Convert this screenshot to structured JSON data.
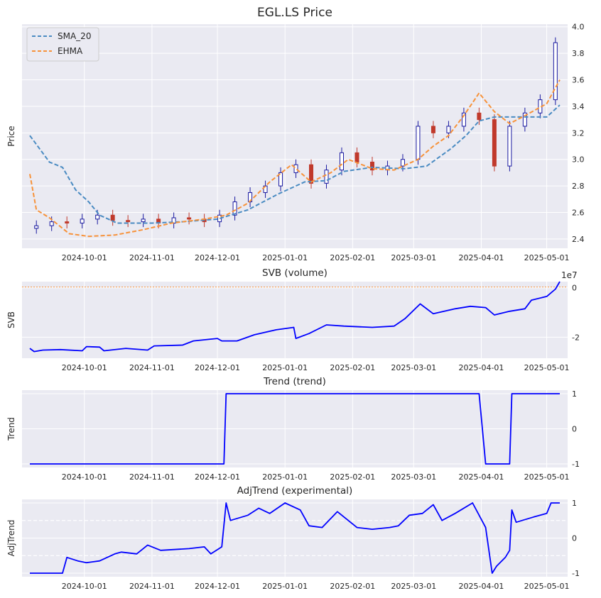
{
  "chart_data": [
    {
      "type": "candlestick",
      "title": "EGL.LS Price",
      "ylabel": "Price",
      "ylim": [
        2.33,
        4.02
      ],
      "yticks": [
        "2.4",
        "2.6",
        "2.8",
        "3.0",
        "3.2",
        "3.4",
        "3.6",
        "3.8",
        "4.0"
      ],
      "xticks": [
        "2024-10-01",
        "2024-11-01",
        "2024-12-01",
        "2025-01-01",
        "2025-02-01",
        "2025-03-01",
        "2025-04-01",
        "2025-05-01"
      ],
      "legend": {
        "position": "top-left",
        "entries": [
          "SMA_20",
          "EHMA"
        ]
      },
      "colors": {
        "up": "#1a1aa0",
        "down": "#c0392b",
        "sma": "#4a8bc2",
        "ehma": "#f7923a"
      },
      "x_range": [
        "2024-09-06",
        "2025-05-07"
      ],
      "close": [
        [
          "2024-09-09",
          2.5
        ],
        [
          "2024-09-16",
          2.53
        ],
        [
          "2024-09-23",
          2.52
        ],
        [
          "2024-09-30",
          2.55
        ],
        [
          "2024-10-07",
          2.58
        ],
        [
          "2024-10-14",
          2.54
        ],
        [
          "2024-10-21",
          2.53
        ],
        [
          "2024-10-28",
          2.55
        ],
        [
          "2024-11-04",
          2.52
        ],
        [
          "2024-11-11",
          2.56
        ],
        [
          "2024-11-18",
          2.55
        ],
        [
          "2024-11-25",
          2.53
        ],
        [
          "2024-12-02",
          2.58
        ],
        [
          "2024-12-09",
          2.68
        ],
        [
          "2024-12-16",
          2.75
        ],
        [
          "2024-12-23",
          2.8
        ],
        [
          "2024-12-30",
          2.9
        ],
        [
          "2025-01-06",
          2.96
        ],
        [
          "2025-01-13",
          2.82
        ],
        [
          "2025-01-20",
          2.92
        ],
        [
          "2025-01-27",
          3.05
        ],
        [
          "2025-02-03",
          2.98
        ],
        [
          "2025-02-10",
          2.92
        ],
        [
          "2025-02-17",
          2.95
        ],
        [
          "2025-02-24",
          3.0
        ],
        [
          "2025-03-03",
          3.25
        ],
        [
          "2025-03-10",
          3.2
        ],
        [
          "2025-03-17",
          3.25
        ],
        [
          "2025-03-24",
          3.35
        ],
        [
          "2025-03-31",
          3.3
        ],
        [
          "2025-04-07",
          2.95
        ],
        [
          "2025-04-14",
          3.25
        ],
        [
          "2025-04-21",
          3.35
        ],
        [
          "2025-04-28",
          3.45
        ],
        [
          "2025-05-05",
          3.88
        ]
      ],
      "sma_20": [
        [
          "2024-09-06",
          3.18
        ],
        [
          "2024-09-15",
          2.98
        ],
        [
          "2024-09-21",
          2.94
        ],
        [
          "2024-09-27",
          2.77
        ],
        [
          "2024-10-03",
          2.68
        ],
        [
          "2024-10-08",
          2.58
        ],
        [
          "2024-10-16",
          2.52
        ],
        [
          "2024-11-01",
          2.52
        ],
        [
          "2024-11-15",
          2.53
        ],
        [
          "2024-12-01",
          2.55
        ],
        [
          "2024-12-15",
          2.62
        ],
        [
          "2024-12-29",
          2.74
        ],
        [
          "2025-01-10",
          2.83
        ],
        [
          "2025-01-20",
          2.84
        ],
        [
          "2025-01-28",
          2.91
        ],
        [
          "2025-02-10",
          2.94
        ],
        [
          "2025-02-25",
          2.93
        ],
        [
          "2025-03-07",
          2.95
        ],
        [
          "2025-03-18",
          3.08
        ],
        [
          "2025-03-25",
          3.18
        ],
        [
          "2025-03-31",
          3.29
        ],
        [
          "2025-04-07",
          3.32
        ],
        [
          "2025-04-21",
          3.32
        ],
        [
          "2025-05-01",
          3.32
        ],
        [
          "2025-05-07",
          3.41
        ]
      ],
      "ehma": [
        [
          "2024-09-06",
          2.89
        ],
        [
          "2024-09-09",
          2.62
        ],
        [
          "2024-09-15",
          2.56
        ],
        [
          "2024-09-24",
          2.44
        ],
        [
          "2024-10-03",
          2.42
        ],
        [
          "2024-10-15",
          2.43
        ],
        [
          "2024-10-28",
          2.47
        ],
        [
          "2024-11-10",
          2.52
        ],
        [
          "2024-11-25",
          2.55
        ],
        [
          "2024-12-05",
          2.58
        ],
        [
          "2024-12-15",
          2.67
        ],
        [
          "2024-12-25",
          2.83
        ],
        [
          "2025-01-04",
          2.96
        ],
        [
          "2025-01-13",
          2.83
        ],
        [
          "2025-01-22",
          2.9
        ],
        [
          "2025-01-30",
          3.0
        ],
        [
          "2025-02-10",
          2.93
        ],
        [
          "2025-02-20",
          2.92
        ],
        [
          "2025-03-03",
          3.0
        ],
        [
          "2025-03-10",
          3.1
        ],
        [
          "2025-03-17",
          3.18
        ],
        [
          "2025-03-24",
          3.33
        ],
        [
          "2025-03-31",
          3.5
        ],
        [
          "2025-04-07",
          3.36
        ],
        [
          "2025-04-14",
          3.27
        ],
        [
          "2025-04-21",
          3.33
        ],
        [
          "2025-05-01",
          3.42
        ],
        [
          "2025-05-07",
          3.6
        ]
      ]
    },
    {
      "type": "line",
      "title": "SVB (volume)",
      "ylabel": "SVB",
      "offset_label": "1e7",
      "ylim": [
        -2.85,
        0.25
      ],
      "yticks": [
        "0",
        "-2"
      ],
      "xticks": [
        "2024-10-01",
        "2024-11-01",
        "2024-12-01",
        "2025-01-01",
        "2025-02-01",
        "2025-03-01",
        "2025-04-01",
        "2025-05-01"
      ],
      "series": [
        {
          "values": [
            [
              "2024-09-06",
              -2.45
            ],
            [
              "2024-09-08",
              -2.58
            ],
            [
              "2024-09-12",
              -2.52
            ],
            [
              "2024-09-20",
              -2.5
            ],
            [
              "2024-09-30",
              -2.55
            ],
            [
              "2024-10-02",
              -2.38
            ],
            [
              "2024-10-08",
              -2.4
            ],
            [
              "2024-10-10",
              -2.55
            ],
            [
              "2024-10-20",
              -2.45
            ],
            [
              "2024-10-30",
              -2.52
            ],
            [
              "2024-11-02",
              -2.35
            ],
            [
              "2024-11-15",
              -2.32
            ],
            [
              "2024-11-20",
              -2.15
            ],
            [
              "2024-12-01",
              -2.05
            ],
            [
              "2024-12-03",
              -2.15
            ],
            [
              "2024-12-10",
              -2.15
            ],
            [
              "2024-12-18",
              -1.9
            ],
            [
              "2024-12-28",
              -1.7
            ],
            [
              "2025-01-05",
              -1.6
            ],
            [
              "2025-01-06",
              -2.05
            ],
            [
              "2025-01-12",
              -1.85
            ],
            [
              "2025-01-20",
              -1.5
            ],
            [
              "2025-01-28",
              -1.55
            ],
            [
              "2025-02-10",
              -1.6
            ],
            [
              "2025-02-20",
              -1.55
            ],
            [
              "2025-02-25",
              -1.25
            ],
            [
              "2025-03-04",
              -0.65
            ],
            [
              "2025-03-10",
              -1.05
            ],
            [
              "2025-03-20",
              -0.85
            ],
            [
              "2025-03-27",
              -0.75
            ],
            [
              "2025-04-03",
              -0.8
            ],
            [
              "2025-04-07",
              -1.1
            ],
            [
              "2025-04-14",
              -0.95
            ],
            [
              "2025-04-21",
              -0.85
            ],
            [
              "2025-04-24",
              -0.5
            ],
            [
              "2025-05-01",
              -0.35
            ],
            [
              "2025-05-05",
              -0.05
            ],
            [
              "2025-05-07",
              0.25
            ]
          ]
        }
      ],
      "hline": 0.03,
      "colors": {
        "line": "#0000ff",
        "hline": "#f7923a"
      }
    },
    {
      "type": "line",
      "title": "Trend (trend)",
      "ylabel": "Trend",
      "ylim": [
        -1.1,
        1.1
      ],
      "yticks": [
        "1",
        "0",
        "-1"
      ],
      "xticks": [
        "2024-10-01",
        "2024-11-01",
        "2024-12-01",
        "2025-01-01",
        "2025-02-01",
        "2025-03-01",
        "2025-04-01",
        "2025-05-01"
      ],
      "series": [
        {
          "values": [
            [
              "2024-09-06",
              -1
            ],
            [
              "2024-12-04",
              -1
            ],
            [
              "2024-12-05",
              1
            ],
            [
              "2025-03-31",
              1
            ],
            [
              "2025-04-03",
              -1
            ],
            [
              "2025-04-14",
              -1
            ],
            [
              "2025-04-15",
              1
            ],
            [
              "2025-05-07",
              1
            ]
          ]
        }
      ],
      "colors": {
        "line": "#0000ff"
      }
    },
    {
      "type": "line",
      "title": "AdjTrend (experimental)",
      "ylabel": "AdjTrend",
      "ylim": [
        -1.1,
        1.1
      ],
      "yticks": [
        "1",
        "0",
        "-1"
      ],
      "hlines": [
        0.5,
        -0.5
      ],
      "xticks": [
        "2024-10-01",
        "2024-11-01",
        "2024-12-01",
        "2025-01-01",
        "2025-02-01",
        "2025-03-01",
        "2025-04-01",
        "2025-05-01"
      ],
      "series": [
        {
          "values": [
            [
              "2024-09-06",
              -1.0
            ],
            [
              "2024-09-21",
              -1.0
            ],
            [
              "2024-09-23",
              -0.55
            ],
            [
              "2024-09-28",
              -0.65
            ],
            [
              "2024-10-02",
              -0.7
            ],
            [
              "2024-10-08",
              -0.65
            ],
            [
              "2024-10-15",
              -0.45
            ],
            [
              "2024-10-18",
              -0.4
            ],
            [
              "2024-10-25",
              -0.45
            ],
            [
              "2024-10-30",
              -0.2
            ],
            [
              "2024-11-05",
              -0.35
            ],
            [
              "2024-11-18",
              -0.3
            ],
            [
              "2024-11-25",
              -0.25
            ],
            [
              "2024-11-28",
              -0.45
            ],
            [
              "2024-12-03",
              -0.25
            ],
            [
              "2024-12-05",
              1.0
            ],
            [
              "2024-12-07",
              0.5
            ],
            [
              "2024-12-15",
              0.65
            ],
            [
              "2024-12-20",
              0.85
            ],
            [
              "2024-12-25",
              0.7
            ],
            [
              "2025-01-01",
              1.0
            ],
            [
              "2025-01-08",
              0.8
            ],
            [
              "2025-01-12",
              0.35
            ],
            [
              "2025-01-18",
              0.3
            ],
            [
              "2025-01-25",
              0.75
            ],
            [
              "2025-02-03",
              0.3
            ],
            [
              "2025-02-10",
              0.25
            ],
            [
              "2025-02-18",
              0.3
            ],
            [
              "2025-02-22",
              0.35
            ],
            [
              "2025-02-27",
              0.65
            ],
            [
              "2025-03-05",
              0.7
            ],
            [
              "2025-03-10",
              0.95
            ],
            [
              "2025-03-14",
              0.5
            ],
            [
              "2025-03-20",
              0.7
            ],
            [
              "2025-03-28",
              1.0
            ],
            [
              "2025-04-03",
              0.3
            ],
            [
              "2025-04-06",
              -1.0
            ],
            [
              "2025-04-08",
              -0.8
            ],
            [
              "2025-04-12",
              -0.55
            ],
            [
              "2025-04-14",
              -0.35
            ],
            [
              "2025-04-15",
              0.8
            ],
            [
              "2025-04-17",
              0.45
            ],
            [
              "2025-04-25",
              0.6
            ],
            [
              "2025-05-01",
              0.7
            ],
            [
              "2025-05-03",
              1.0
            ],
            [
              "2025-05-07",
              1.0
            ]
          ]
        }
      ],
      "colors": {
        "line": "#0000ff"
      }
    }
  ]
}
